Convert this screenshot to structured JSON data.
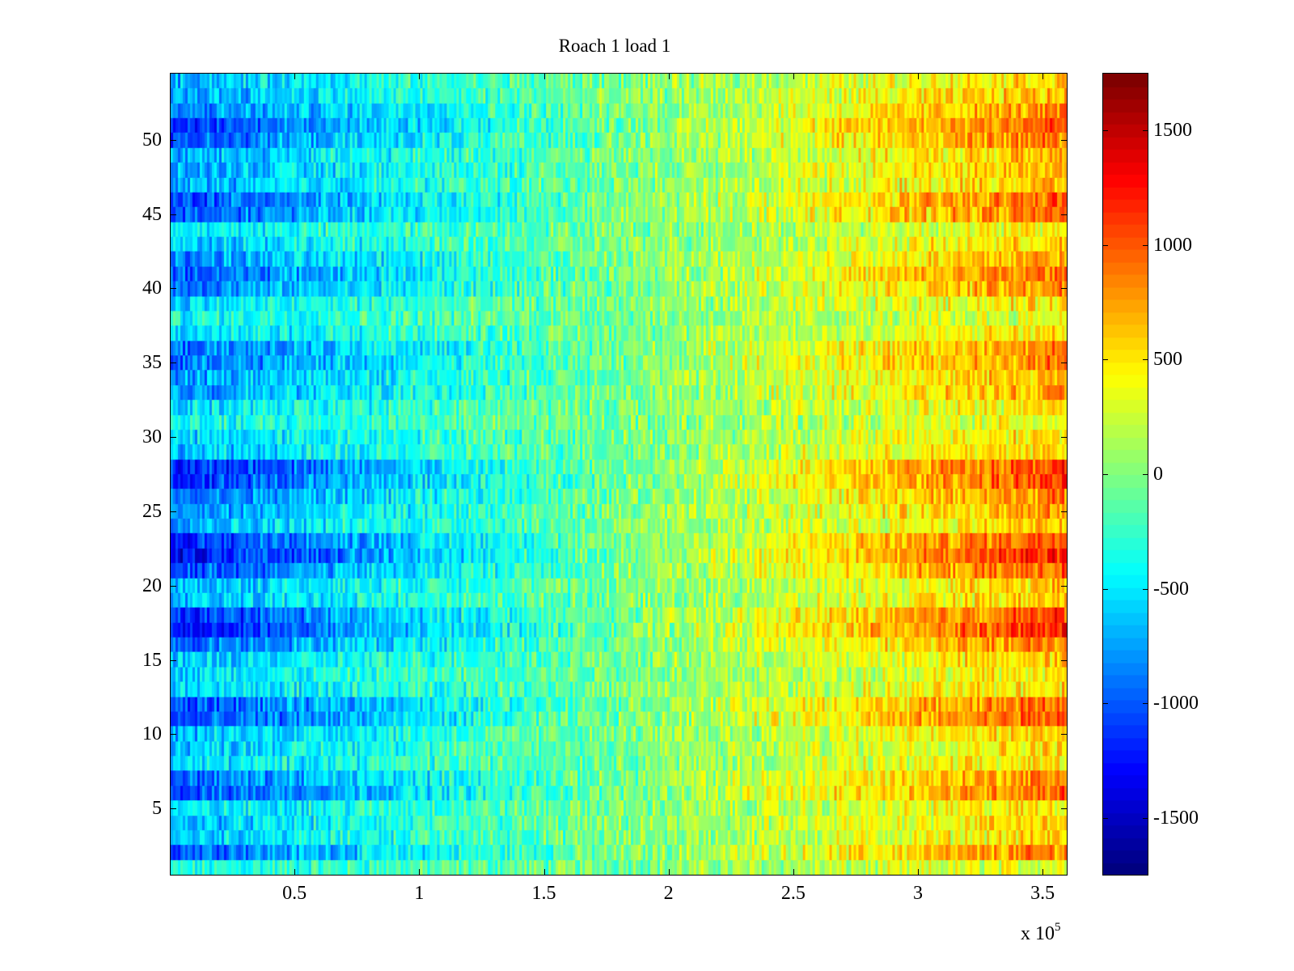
{
  "chart_data": {
    "type": "heatmap",
    "title": "Roach 1 load 1",
    "xlabel": "",
    "ylabel": "",
    "x_exponent_label": "x 10",
    "x_exponent_power": "5",
    "x_range": [
      0,
      360000
    ],
    "y_range": [
      0.5,
      54.5
    ],
    "rows": 54,
    "x_ticks": [
      0.5,
      1,
      1.5,
      2,
      2.5,
      3,
      3.5
    ],
    "x_tick_labels": [
      "0.5",
      "1",
      "1.5",
      "2",
      "2.5",
      "3",
      "3.5"
    ],
    "y_ticks": [
      5,
      10,
      15,
      20,
      25,
      30,
      35,
      40,
      45,
      50
    ],
    "y_tick_labels": [
      "5",
      "10",
      "15",
      "20",
      "25",
      "30",
      "35",
      "40",
      "45",
      "50"
    ],
    "colormap": "jet",
    "color_limits": [
      -1750,
      1750
    ],
    "colorbar_ticks": [
      1500,
      1000,
      500,
      0,
      -500,
      -1000,
      -1500
    ],
    "colorbar_tick_labels": [
      "1500",
      "1000",
      "500",
      "0",
      "-500",
      "-1000",
      "-1500"
    ],
    "row_gain": [
      0.35,
      0.85,
      0.55,
      0.6,
      0.5,
      0.95,
      0.85,
      0.5,
      0.55,
      0.6,
      1.0,
      0.95,
      0.55,
      0.5,
      0.6,
      0.85,
      1.15,
      1.05,
      0.6,
      0.6,
      0.95,
      1.2,
      1.05,
      0.6,
      0.75,
      0.85,
      1.05,
      1.1,
      0.6,
      0.55,
      0.4,
      0.5,
      0.7,
      0.7,
      0.85,
      0.85,
      0.5,
      0.35,
      0.5,
      0.8,
      0.9,
      0.75,
      0.55,
      0.45,
      0.9,
      0.95,
      0.65,
      0.7,
      0.65,
      0.9,
      1.0,
      0.8,
      0.65,
      0.6
    ]
  }
}
